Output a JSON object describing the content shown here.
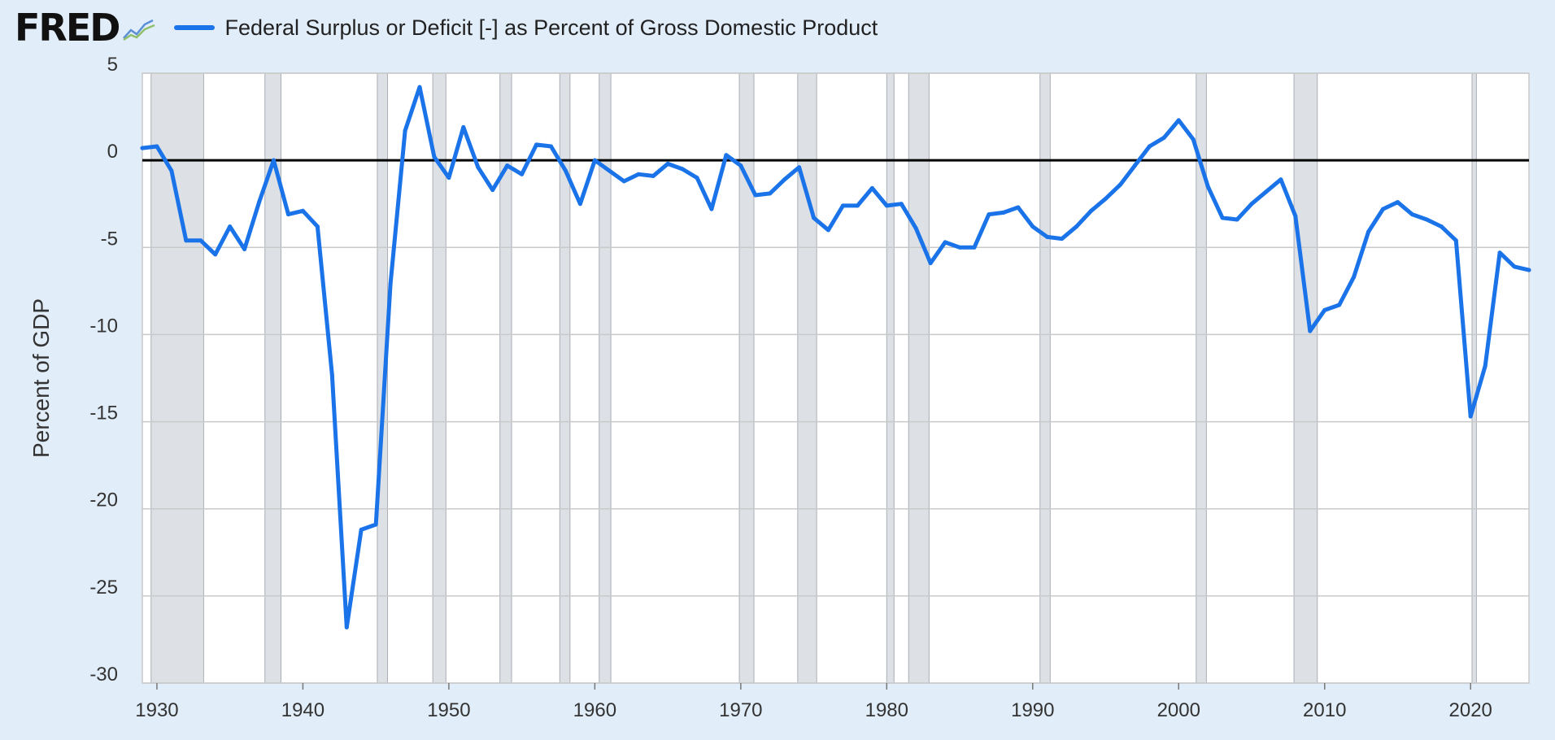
{
  "header": {
    "logo_text": "FRED",
    "logo_icon": "trend-graph-icon"
  },
  "colors": {
    "line": "#1a73e8",
    "recession": "#dde1e6",
    "plot_bg": "#ffffff",
    "page_bg": "#e1edf9",
    "zero_line": "#000000"
  },
  "chart_data": {
    "type": "line",
    "title": "",
    "xlabel": "",
    "ylabel": "Percent of GDP",
    "xlim": [
      1929,
      2024
    ],
    "ylim": [
      -30,
      5
    ],
    "x_ticks": [
      1930,
      1940,
      1950,
      1960,
      1970,
      1980,
      1990,
      2000,
      2010,
      2020
    ],
    "x_tick_labels": [
      "1930",
      "1940",
      "1950",
      "1960",
      "1970",
      "1980",
      "1990",
      "2000",
      "2010",
      "2020"
    ],
    "y_ticks": [
      5,
      0,
      -5,
      -10,
      -15,
      -20,
      -25,
      -30
    ],
    "y_tick_labels": [
      "5",
      "0",
      "-5",
      "-10",
      "-15",
      "-20",
      "-25",
      "-30"
    ],
    "grid": true,
    "legend_position": "top",
    "reference_line": 0,
    "recessions": [
      [
        1929.6,
        1933.2
      ],
      [
        1937.4,
        1938.5
      ],
      [
        1945.1,
        1945.8
      ],
      [
        1948.9,
        1949.8
      ],
      [
        1953.5,
        1954.3
      ],
      [
        1957.6,
        1958.3
      ],
      [
        1960.3,
        1961.1
      ],
      [
        1969.9,
        1970.9
      ],
      [
        1973.9,
        1975.2
      ],
      [
        1980.0,
        1980.5
      ],
      [
        1981.5,
        1982.9
      ],
      [
        1990.5,
        1991.2
      ],
      [
        2001.2,
        2001.9
      ],
      [
        2007.9,
        2009.5
      ],
      [
        2020.1,
        2020.4
      ]
    ],
    "series": [
      {
        "name": "Federal Surplus or Deficit [-] as Percent of Gross Domestic Product",
        "x": [
          1929,
          1930,
          1931,
          1932,
          1933,
          1934,
          1935,
          1936,
          1937,
          1938,
          1939,
          1940,
          1941,
          1942,
          1943,
          1944,
          1945,
          1946,
          1947,
          1948,
          1949,
          1950,
          1951,
          1952,
          1953,
          1954,
          1955,
          1956,
          1957,
          1958,
          1959,
          1960,
          1961,
          1962,
          1963,
          1964,
          1965,
          1966,
          1967,
          1968,
          1969,
          1970,
          1971,
          1972,
          1973,
          1974,
          1975,
          1976,
          1977,
          1978,
          1979,
          1980,
          1981,
          1982,
          1983,
          1984,
          1985,
          1986,
          1987,
          1988,
          1989,
          1990,
          1991,
          1992,
          1993,
          1994,
          1995,
          1996,
          1997,
          1998,
          1999,
          2000,
          2001,
          2002,
          2003,
          2004,
          2005,
          2006,
          2007,
          2008,
          2009,
          2010,
          2011,
          2012,
          2013,
          2014,
          2015,
          2016,
          2017,
          2018,
          2019,
          2020,
          2021,
          2022,
          2023,
          2024
        ],
        "values": [
          0.7,
          0.8,
          -0.6,
          -4.6,
          -4.6,
          -5.4,
          -3.8,
          -5.1,
          -2.4,
          0.0,
          -3.1,
          -2.9,
          -3.8,
          -12.3,
          -26.8,
          -21.2,
          -20.9,
          -7.1,
          1.7,
          4.2,
          0.2,
          -1.0,
          1.9,
          -0.4,
          -1.7,
          -0.3,
          -0.8,
          0.9,
          0.8,
          -0.6,
          -2.5,
          0.0,
          -0.6,
          -1.2,
          -0.8,
          -0.9,
          -0.2,
          -0.5,
          -1.0,
          -2.8,
          0.3,
          -0.3,
          -2.0,
          -1.9,
          -1.1,
          -0.4,
          -3.3,
          -4.0,
          -2.6,
          -2.6,
          -1.6,
          -2.6,
          -2.5,
          -3.9,
          -5.9,
          -4.7,
          -5.0,
          -5.0,
          -3.1,
          -3.0,
          -2.7,
          -3.8,
          -4.4,
          -4.5,
          -3.8,
          -2.9,
          -2.2,
          -1.4,
          -0.3,
          0.8,
          1.3,
          2.3,
          1.2,
          -1.5,
          -3.3,
          -3.4,
          -2.5,
          -1.8,
          -1.1,
          -3.2,
          -9.8,
          -8.6,
          -8.3,
          -6.7,
          -4.1,
          -2.8,
          -2.4,
          -3.1,
          -3.4,
          -3.8,
          -4.6,
          -14.7,
          -11.8,
          -5.3,
          -6.1,
          -6.3
        ]
      }
    ]
  }
}
